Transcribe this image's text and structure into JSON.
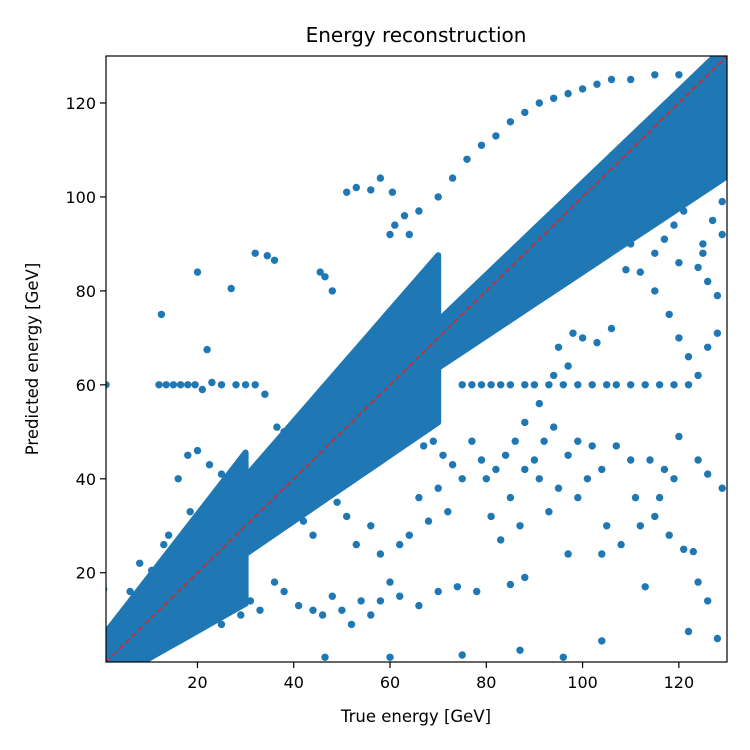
{
  "chart_data": {
    "type": "scatter",
    "title": "Energy reconstruction",
    "xlabel": "True energy [GeV]",
    "ylabel": "Predicted energy [GeV]",
    "xlim": [
      1,
      130
    ],
    "ylim": [
      1,
      130
    ],
    "xticks": [
      20,
      40,
      60,
      80,
      100,
      120
    ],
    "yticks": [
      20,
      40,
      60,
      80,
      100,
      120
    ],
    "grid": false,
    "marker_color": "#1f77b4",
    "reference_line": {
      "from": [
        1,
        1
      ],
      "to": [
        130,
        130
      ],
      "color": "#d62728",
      "style": "dashed"
    },
    "series": [
      {
        "points": [
          [
            1,
            60
          ],
          [
            20,
            84
          ],
          [
            12.5,
            75
          ],
          [
            32,
            88
          ],
          [
            34.5,
            87.5
          ],
          [
            36,
            86.5
          ],
          [
            27,
            80.5
          ],
          [
            22,
            67.5
          ],
          [
            45.5,
            84
          ],
          [
            46.5,
            83
          ],
          [
            48,
            80
          ],
          [
            51,
            101
          ],
          [
            53,
            102
          ],
          [
            56,
            101.5
          ],
          [
            58,
            104
          ],
          [
            61,
            94
          ],
          [
            64,
            92
          ],
          [
            60.5,
            101
          ],
          [
            12,
            60
          ],
          [
            13.5,
            60
          ],
          [
            15,
            60
          ],
          [
            16.5,
            60
          ],
          [
            18,
            60
          ],
          [
            19.5,
            60
          ],
          [
            21,
            59
          ],
          [
            23,
            60.5
          ],
          [
            25,
            60
          ],
          [
            28,
            60
          ],
          [
            30,
            60
          ],
          [
            32,
            60
          ],
          [
            34,
            58
          ],
          [
            36.5,
            51
          ],
          [
            38,
            50
          ],
          [
            18,
            45
          ],
          [
            20,
            46
          ],
          [
            22.5,
            43
          ],
          [
            25,
            41
          ],
          [
            16,
            40
          ],
          [
            18.5,
            33
          ],
          [
            20.5,
            32
          ],
          [
            14,
            28
          ],
          [
            13,
            26
          ],
          [
            10.5,
            20.5
          ],
          [
            8,
            22
          ],
          [
            6,
            16
          ],
          [
            0.5,
            16.5
          ],
          [
            75,
            60
          ],
          [
            77,
            60
          ],
          [
            79,
            60
          ],
          [
            81,
            60
          ],
          [
            83,
            60
          ],
          [
            85,
            60
          ],
          [
            88,
            60
          ],
          [
            90,
            60
          ],
          [
            93,
            60
          ],
          [
            96,
            60
          ],
          [
            99,
            60
          ],
          [
            102,
            60
          ],
          [
            105,
            60
          ],
          [
            107,
            60
          ],
          [
            110,
            60
          ],
          [
            113,
            60
          ],
          [
            116,
            60
          ],
          [
            119,
            60
          ],
          [
            122,
            60
          ],
          [
            118,
            75
          ],
          [
            120,
            70
          ],
          [
            122,
            66
          ],
          [
            124,
            62
          ],
          [
            126,
            68
          ],
          [
            128,
            71
          ],
          [
            115,
            80
          ],
          [
            112,
            84
          ],
          [
            109,
            84.5
          ],
          [
            124,
            85
          ],
          [
            126,
            82
          ],
          [
            128,
            79
          ],
          [
            125,
            88
          ],
          [
            129,
            92
          ],
          [
            106,
            72
          ],
          [
            103,
            69
          ],
          [
            100,
            70
          ],
          [
            98,
            71
          ],
          [
            95,
            68
          ],
          [
            97,
            64
          ],
          [
            94,
            62
          ],
          [
            91,
            56
          ],
          [
            88,
            52
          ],
          [
            86,
            48
          ],
          [
            84,
            45
          ],
          [
            82,
            42
          ],
          [
            80,
            40
          ],
          [
            88,
            42
          ],
          [
            90,
            44
          ],
          [
            92,
            48
          ],
          [
            94,
            51
          ],
          [
            97,
            45
          ],
          [
            99,
            48
          ],
          [
            102,
            47
          ],
          [
            104,
            42
          ],
          [
            107,
            47
          ],
          [
            110,
            44
          ],
          [
            114,
            44
          ],
          [
            117,
            42
          ],
          [
            120,
            49
          ],
          [
            124,
            44
          ],
          [
            126,
            41
          ],
          [
            129,
            38
          ],
          [
            111,
            36
          ],
          [
            115,
            32
          ],
          [
            118,
            28
          ],
          [
            121,
            25
          ],
          [
            124,
            18
          ],
          [
            126,
            14
          ],
          [
            128,
            6
          ],
          [
            122,
            7.5
          ],
          [
            113,
            17
          ],
          [
            104,
            24
          ],
          [
            97,
            24
          ],
          [
            88,
            19
          ],
          [
            85,
            17.5
          ],
          [
            78,
            16
          ],
          [
            74,
            17
          ],
          [
            70,
            16
          ],
          [
            66,
            13
          ],
          [
            62,
            15
          ],
          [
            60,
            18
          ],
          [
            58,
            14
          ],
          [
            56,
            11
          ],
          [
            54,
            14
          ],
          [
            52,
            9
          ],
          [
            50,
            12
          ],
          [
            48,
            15
          ],
          [
            46,
            11
          ],
          [
            44,
            12
          ],
          [
            41,
            13
          ],
          [
            38,
            16
          ],
          [
            36,
            18
          ],
          [
            33,
            12
          ],
          [
            31,
            14
          ],
          [
            29,
            11
          ],
          [
            27,
            13
          ],
          [
            25,
            9
          ],
          [
            23,
            10
          ],
          [
            21,
            12
          ],
          [
            46.5,
            2
          ],
          [
            60,
            2
          ],
          [
            75,
            2.5
          ],
          [
            87,
            3.5
          ],
          [
            96,
            2
          ],
          [
            104,
            5.5
          ],
          [
            123,
            24.5
          ],
          [
            70,
            38
          ],
          [
            72,
            33
          ],
          [
            66,
            36
          ],
          [
            68,
            31
          ],
          [
            64,
            28
          ],
          [
            62,
            26
          ],
          [
            58,
            24
          ],
          [
            56,
            30
          ],
          [
            53,
            26
          ],
          [
            51,
            32
          ],
          [
            49,
            35
          ],
          [
            47,
            39
          ],
          [
            44,
            28
          ],
          [
            42,
            31
          ],
          [
            40,
            36
          ],
          [
            77,
            48
          ],
          [
            79,
            44
          ],
          [
            75,
            40
          ],
          [
            73,
            43
          ],
          [
            71,
            45
          ],
          [
            69,
            48
          ],
          [
            67,
            47
          ],
          [
            65,
            50
          ],
          [
            85,
            36
          ],
          [
            87,
            30
          ],
          [
            83,
            27
          ],
          [
            81,
            32
          ],
          [
            91,
            40
          ],
          [
            93,
            33
          ],
          [
            95,
            38
          ],
          [
            99,
            36
          ],
          [
            101,
            40
          ],
          [
            105,
            30
          ],
          [
            108,
            26
          ],
          [
            112,
            30
          ],
          [
            116,
            36
          ],
          [
            119,
            40
          ],
          [
            100,
            88
          ],
          [
            105,
            92
          ],
          [
            110,
            90
          ],
          [
            115,
            88
          ],
          [
            120,
            86
          ],
          [
            125,
            90
          ],
          [
            127,
            95
          ],
          [
            129,
            99
          ],
          [
            119,
            94
          ],
          [
            121,
            97
          ],
          [
            123,
            100
          ],
          [
            117,
            91
          ],
          [
            113,
            93
          ],
          [
            108,
            96
          ],
          [
            60,
            92
          ],
          [
            63,
            96
          ],
          [
            66,
            97
          ],
          [
            70,
            100
          ],
          [
            73,
            104
          ],
          [
            76,
            108
          ],
          [
            79,
            111
          ],
          [
            82,
            113
          ],
          [
            85,
            116
          ],
          [
            88,
            118
          ],
          [
            91,
            120
          ],
          [
            94,
            121
          ],
          [
            97,
            122
          ],
          [
            100,
            123
          ],
          [
            103,
            124
          ],
          [
            106,
            125
          ],
          [
            110,
            125
          ],
          [
            115,
            126
          ],
          [
            120,
            126
          ],
          [
            125,
            126
          ],
          [
            128,
            126
          ]
        ]
      }
    ],
    "bands": [
      {
        "x_from": 1,
        "x_to": 30,
        "lo_slope": 0.58,
        "lo_off": -4,
        "hi_slope": 1.32,
        "hi_off": 6
      },
      {
        "x_from": 30,
        "x_to": 70,
        "lo_slope": 0.7,
        "lo_off": 3,
        "hi_slope": 1.18,
        "hi_off": 5
      },
      {
        "x_from": 70,
        "x_to": 130,
        "lo_slope": 0.68,
        "lo_off": 16,
        "hi_slope": 0.98,
        "hi_off": 5
      }
    ]
  }
}
